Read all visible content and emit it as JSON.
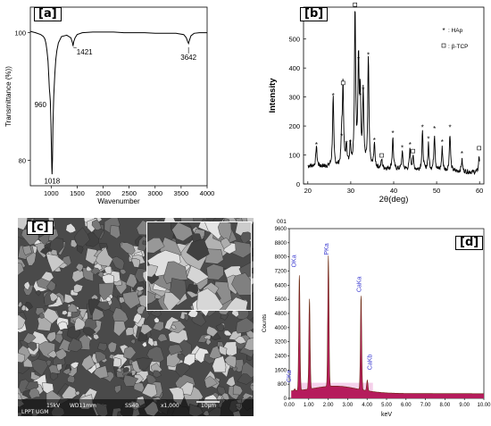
{
  "panels": [
    {
      "letter": "a"
    },
    {
      "letter": "b"
    },
    {
      "letter": "c"
    },
    {
      "letter": "d"
    }
  ],
  "chart_data": [
    {
      "panel": "a",
      "type": "line",
      "xlabel": "Wavenumber",
      "ylabel": "Transmittance (%))",
      "xlim": [
        600,
        4000
      ],
      "ylim": [
        76,
        104
      ],
      "xticks": [
        1000,
        1500,
        2000,
        2500,
        3000,
        3500,
        4000
      ],
      "yticks": [
        80,
        100
      ],
      "annotations": [
        {
          "text": "960",
          "x": 960,
          "y": 90
        },
        {
          "text": "1018",
          "x": 1018,
          "y": 78
        },
        {
          "text": "1421",
          "x": 1421,
          "y": 98
        },
        {
          "text": "3642",
          "x": 3642,
          "y": 98
        }
      ],
      "x": [
        600,
        700,
        800,
        850,
        880,
        900,
        920,
        940,
        955,
        965,
        975,
        985,
        995,
        1005,
        1012,
        1018,
        1025,
        1035,
        1050,
        1070,
        1090,
        1110,
        1140,
        1200,
        1300,
        1380,
        1410,
        1421,
        1435,
        1460,
        1500,
        1600,
        1800,
        2000,
        2200,
        2400,
        2600,
        2800,
        3000,
        3200,
        3400,
        3550,
        3600,
        3625,
        3642,
        3660,
        3690,
        3750,
        3850,
        4000
      ],
      "y": [
        100.2,
        100.0,
        99.7,
        99.4,
        99.0,
        98.3,
        97.2,
        95.5,
        93.0,
        91.2,
        90.4,
        89.2,
        86.0,
        82.0,
        79.0,
        77.8,
        80.0,
        85.5,
        90.0,
        93.5,
        95.8,
        97.2,
        98.4,
        99.4,
        99.6,
        99.2,
        98.4,
        97.9,
        98.6,
        99.2,
        99.7,
        100.0,
        100.1,
        100.1,
        100.1,
        100.0,
        100.0,
        100.0,
        99.9,
        99.9,
        99.9,
        99.7,
        99.2,
        98.6,
        98.3,
        98.8,
        99.5,
        99.9,
        100.0,
        100.0
      ]
    },
    {
      "panel": "b",
      "type": "line",
      "xlabel": "2θ(deg)",
      "ylabel": "Intensity",
      "xlim": [
        19,
        61
      ],
      "ylim": [
        0,
        610
      ],
      "xticks": [
        20,
        30,
        40,
        50,
        60
      ],
      "yticks": [
        0,
        100,
        200,
        300,
        400,
        500
      ],
      "legend": [
        {
          "marker": "*",
          "label": ": HAp"
        },
        {
          "marker": "□",
          "label": ": β-TCP"
        }
      ],
      "legend_position": "top-right",
      "peaks": [
        {
          "x": 22.0,
          "y": 120,
          "phase": "HAp"
        },
        {
          "x": 25.9,
          "y": 290,
          "phase": "HAp"
        },
        {
          "x": 27.9,
          "y": 150,
          "phase": "HAp"
        },
        {
          "x": 28.2,
          "y": 330,
          "phase": "β-TCP"
        },
        {
          "x": 29.0,
          "y": 125,
          "phase": "HAp"
        },
        {
          "x": 29.9,
          "y": 130,
          "phase": "HAp"
        },
        {
          "x": 31.0,
          "y": 600,
          "phase": "β-TCP"
        },
        {
          "x": 31.8,
          "y": 415,
          "phase": "HAp"
        },
        {
          "x": 32.2,
          "y": 290,
          "phase": "HAp"
        },
        {
          "x": 32.9,
          "y": 310,
          "phase": "HAp"
        },
        {
          "x": 34.1,
          "y": 430,
          "phase": "HAp"
        },
        {
          "x": 35.5,
          "y": 135,
          "phase": "HAp"
        },
        {
          "x": 37.2,
          "y": 80,
          "phase": "β-TCP"
        },
        {
          "x": 39.8,
          "y": 160,
          "phase": "HAp"
        },
        {
          "x": 42.0,
          "y": 110,
          "phase": "HAp"
        },
        {
          "x": 43.8,
          "y": 120,
          "phase": "HAp"
        },
        {
          "x": 44.5,
          "y": 95,
          "phase": "β-TCP"
        },
        {
          "x": 46.7,
          "y": 180,
          "phase": "HAp"
        },
        {
          "x": 48.1,
          "y": 140,
          "phase": "HAp"
        },
        {
          "x": 49.5,
          "y": 175,
          "phase": "HAp"
        },
        {
          "x": 51.3,
          "y": 130,
          "phase": "HAp"
        },
        {
          "x": 53.1,
          "y": 180,
          "phase": "HAp"
        },
        {
          "x": 55.9,
          "y": 90,
          "phase": "HAp"
        },
        {
          "x": 59.9,
          "y": 105,
          "phase": "β-TCP"
        }
      ]
    },
    {
      "panel": "d",
      "type": "bar",
      "title": "001",
      "xlabel": "keV",
      "ylabel": "Counts",
      "xlim": [
        0,
        10
      ],
      "ylim": [
        0,
        9600
      ],
      "xticks": [
        "0.00",
        "1.00",
        "2.00",
        "3.00",
        "4.00",
        "5.00",
        "6.00",
        "7.00",
        "8.00",
        "9.00",
        "10.00"
      ],
      "yticks": [
        0,
        800,
        1600,
        2400,
        3200,
        4000,
        4800,
        5600,
        6400,
        7200,
        8000,
        8800,
        9600
      ],
      "peaks": [
        {
          "label": "OKa",
          "x": 0.52,
          "y": 6800
        },
        {
          "label": "",
          "x": 1.04,
          "y": 5400
        },
        {
          "label": "PKa",
          "x": 2.01,
          "y": 7700
        },
        {
          "label": "CaKa",
          "x": 3.69,
          "y": 5600
        },
        {
          "label": "CaKb",
          "x": 4.01,
          "y": 900
        },
        {
          "label": "CKa",
          "x": 0.28,
          "y": 400
        }
      ]
    }
  ],
  "sem": {
    "info_voltage": "15kV",
    "info_wd": "WD11mm",
    "info_ss": "SS40",
    "info_mag": "x1,000",
    "info_scale": "10μm",
    "info_lab": "LPPT UGM"
  }
}
